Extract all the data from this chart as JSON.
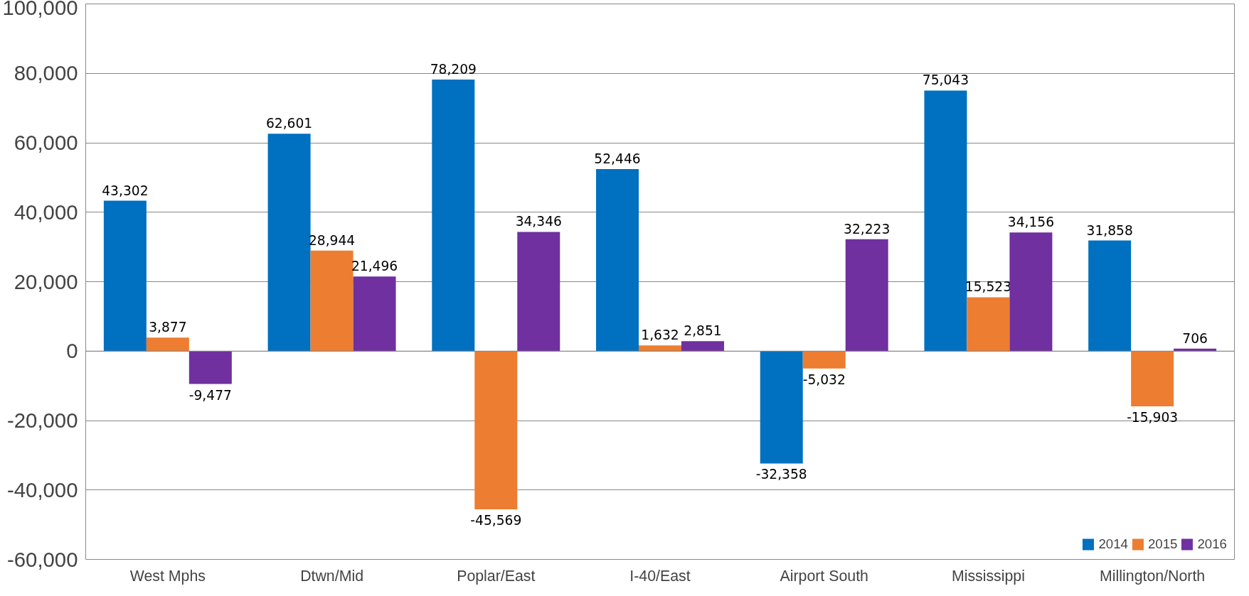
{
  "chart_data": {
    "type": "bar",
    "categories": [
      "West Mphs",
      "Dtwn/Mid",
      "Poplar/East",
      "I-40/East",
      "Airport South",
      "Mississippi",
      "Millington/North"
    ],
    "series": [
      {
        "name": "2014",
        "color": "#0070c0",
        "values": [
          43302,
          62601,
          78209,
          52446,
          -32358,
          75043,
          31858
        ],
        "value_labels": [
          "43,302",
          "62,601",
          "78,209",
          "52,446",
          "-32,358",
          "75,043",
          "31,858"
        ]
      },
      {
        "name": "2015",
        "color": "#ed7d31",
        "values": [
          3877,
          28944,
          -45569,
          1632,
          -5032,
          15523,
          -15903
        ],
        "value_labels": [
          "3,877",
          "28,944",
          "-45,569",
          "1,632",
          "-5,032",
          "15,523",
          "-15,903"
        ]
      },
      {
        "name": "2016",
        "color": "#7030a0",
        "values": [
          -9477,
          21496,
          34346,
          2851,
          32223,
          34156,
          706
        ],
        "value_labels": [
          "-9,477",
          "21,496",
          "34,346",
          "2,851",
          "32,223",
          "34,156",
          "706"
        ]
      }
    ],
    "ylim": [
      -60000,
      100000
    ],
    "yticks": [
      {
        "value": -60000,
        "label": "-60,000"
      },
      {
        "value": -40000,
        "label": "-40,000"
      },
      {
        "value": -20000,
        "label": "-20,000"
      },
      0,
      {
        "value": 20000,
        "label": "20,000"
      },
      {
        "value": 40000,
        "label": "40,000"
      },
      {
        "value": 60000,
        "label": "60,000"
      },
      {
        "value": 80000,
        "label": "80,000"
      },
      {
        "value": 100000,
        "label": "100,000"
      }
    ],
    "grid": "y",
    "legend": "bottom right"
  }
}
